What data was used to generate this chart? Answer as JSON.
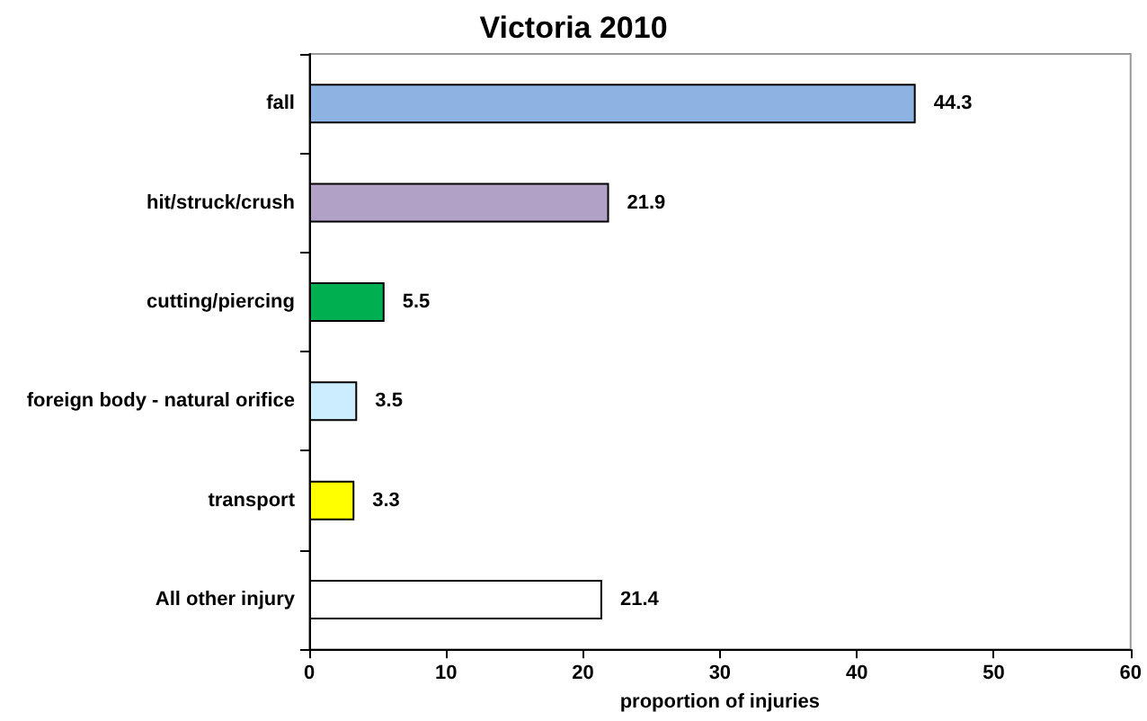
{
  "chart_data": {
    "type": "bar",
    "orientation": "horizontal",
    "title": "Victoria 2010",
    "xlabel": "proportion of injuries",
    "categories": [
      "fall",
      "hit/struck/crush",
      "cutting/piercing",
      "foreign body - natural orifice",
      "transport",
      "All other injury"
    ],
    "values": [
      44.3,
      21.9,
      5.5,
      3.5,
      3.3,
      21.4
    ],
    "colors": [
      "#8db3e2",
      "#b2a1c7",
      "#00b050",
      "#ccecff",
      "#ffff00",
      "#ffffff"
    ],
    "xlim": [
      0,
      60
    ],
    "xticks": [
      0,
      10,
      20,
      30,
      40,
      50,
      60
    ],
    "data_labels": true
  }
}
